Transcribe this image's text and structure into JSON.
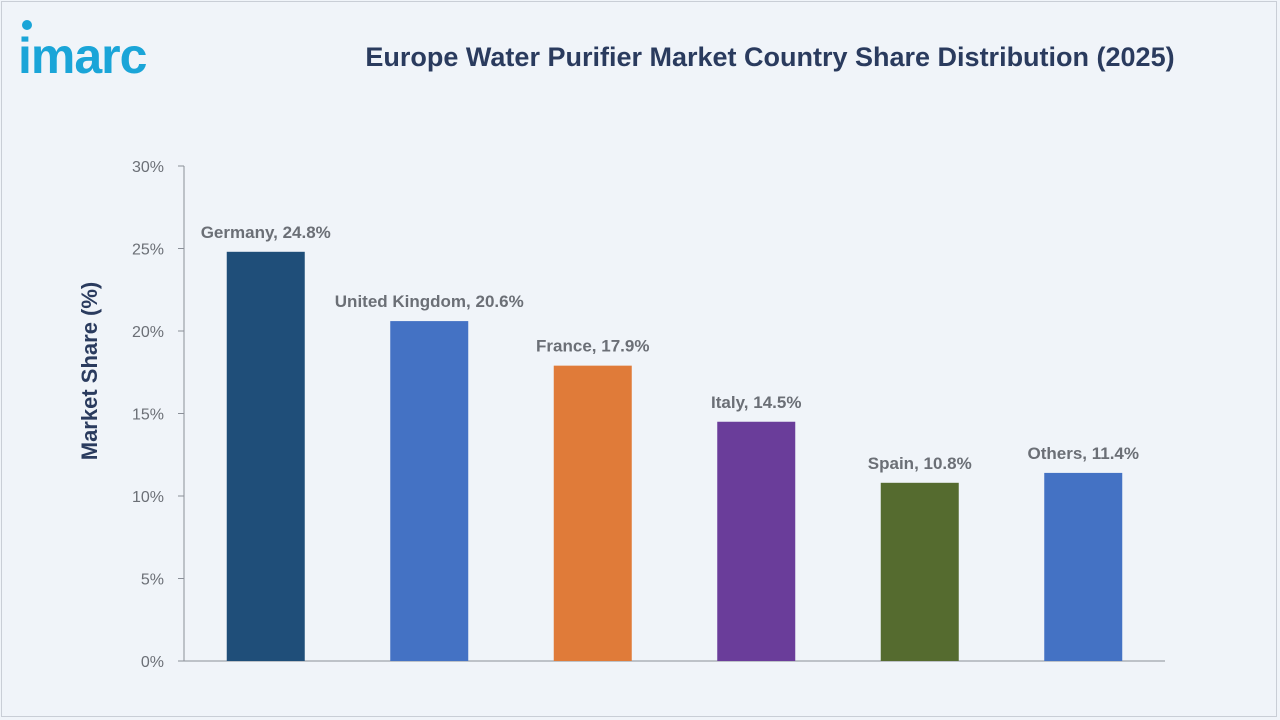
{
  "brand": {
    "logo_text": "imarc",
    "logo_color": "#1aa5d8"
  },
  "title": "Europe Water Purifier Market Country Share Distribution (2025)",
  "chart_data": {
    "type": "bar",
    "title": "Europe Water Purifier Market Country Share Distribution (2025)",
    "xlabel": "",
    "ylabel": "Market Share (%)",
    "ylim": [
      0,
      30
    ],
    "yticks": [
      0,
      5,
      10,
      15,
      20,
      25,
      30
    ],
    "ytick_labels": [
      "0%",
      "5%",
      "10%",
      "15%",
      "20%",
      "25%",
      "30%"
    ],
    "grid": false,
    "categories": [
      "Germany",
      "United Kingdom",
      "France",
      "Italy",
      "Spain",
      "Others"
    ],
    "values": [
      24.8,
      20.6,
      17.9,
      14.5,
      10.8,
      11.4
    ],
    "data_labels": [
      "Germany, 24.8%",
      "United Kingdom, 20.6%",
      "France, 17.9%",
      "Italy, 14.5%",
      "Spain, 10.8%",
      "Others, 11.4%"
    ],
    "colors": [
      "#1f4e79",
      "#4472c4",
      "#e07b39",
      "#6a3d9a",
      "#556b2f",
      "#4472c4"
    ]
  },
  "style": {
    "axis_color": "#8a8f98",
    "label_color": "#6b6f76",
    "title_color": "#2a3b5e"
  }
}
